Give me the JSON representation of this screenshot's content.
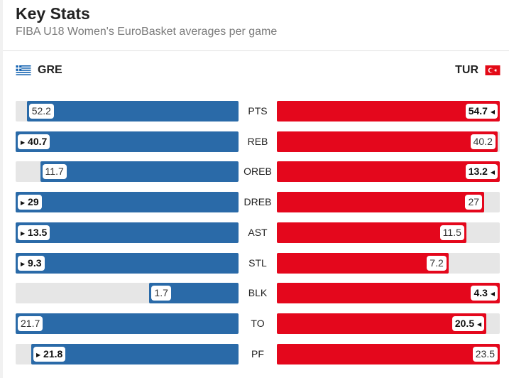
{
  "header": {
    "title": "Key Stats",
    "subtitle": "FIBA U18 Women's EuroBasket averages per game"
  },
  "teams": {
    "left": {
      "code": "GRE",
      "color": "#2a6aa8"
    },
    "right": {
      "code": "TUR",
      "color": "#e4071c"
    }
  },
  "stats": [
    {
      "label": "PTS",
      "gre": "52.2",
      "tur": "54.7",
      "gre_fill": 0.95,
      "tur_fill": 1.0,
      "leader": "tur"
    },
    {
      "label": "REB",
      "gre": "40.7",
      "tur": "40.2",
      "gre_fill": 1.0,
      "tur_fill": 0.99,
      "leader": "gre"
    },
    {
      "label": "OREB",
      "gre": "11.7",
      "tur": "13.2",
      "gre_fill": 0.89,
      "tur_fill": 1.0,
      "leader": "tur"
    },
    {
      "label": "DREB",
      "gre": "29",
      "tur": "27",
      "gre_fill": 1.0,
      "tur_fill": 0.93,
      "leader": "gre"
    },
    {
      "label": "AST",
      "gre": "13.5",
      "tur": "11.5",
      "gre_fill": 1.0,
      "tur_fill": 0.85,
      "leader": "gre"
    },
    {
      "label": "STL",
      "gre": "9.3",
      "tur": "7.2",
      "gre_fill": 1.0,
      "tur_fill": 0.77,
      "leader": "gre"
    },
    {
      "label": "BLK",
      "gre": "1.7",
      "tur": "4.3",
      "gre_fill": 0.4,
      "tur_fill": 1.0,
      "leader": "tur"
    },
    {
      "label": "TO",
      "gre": "21.7",
      "tur": "20.5",
      "gre_fill": 1.0,
      "tur_fill": 0.94,
      "leader": "tur"
    },
    {
      "label": "PF",
      "gre": "21.8",
      "tur": "23.5",
      "gre_fill": 0.93,
      "tur_fill": 1.0,
      "leader": "gre"
    }
  ]
}
